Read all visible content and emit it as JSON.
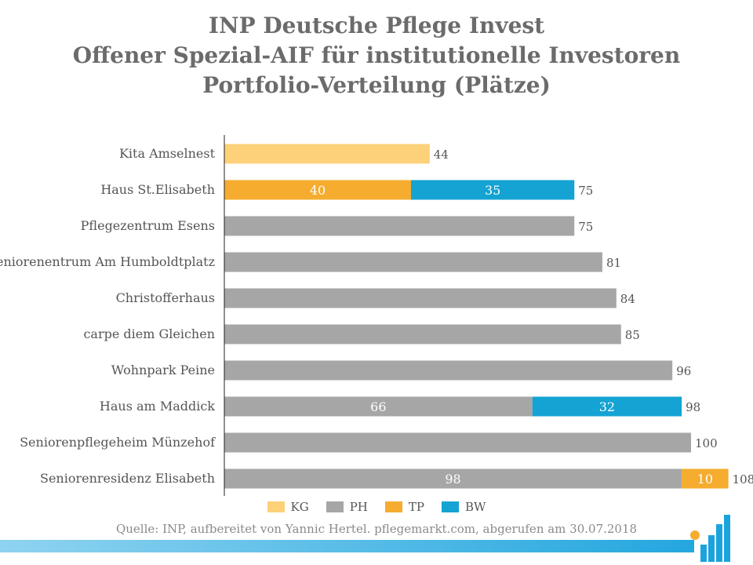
{
  "title_lines": [
    "INP Deutsche Pflege Invest",
    "Offener Spezial-AIF für institutionelle Investoren",
    "Portfolio-Verteilung (Plätze)"
  ],
  "source": "Quelle: INP, aufbereitet von Yannic Hertel. pflegemarkt.com, abgerufen am 30.07.2018",
  "colors": {
    "KG": "#fdd07a",
    "PH": "#a6a6a6",
    "TP": "#f5ac2f",
    "BW": "#14a3d3"
  },
  "logo": {
    "icon": "pflegemarkt-logo-icon",
    "colors": [
      "#1aa3dd",
      "#f5ac2f"
    ]
  },
  "chart_data": {
    "type": "bar",
    "orientation": "horizontal",
    "stacked": true,
    "xlim": [
      0,
      110
    ],
    "grid": false,
    "legend_position": "bottom",
    "series": [
      {
        "name": "KG",
        "values": [
          44,
          0,
          0,
          0,
          0,
          0,
          0,
          0,
          0,
          0
        ]
      },
      {
        "name": "PH",
        "values": [
          0,
          0,
          75,
          81,
          84,
          85,
          96,
          66,
          100,
          98
        ]
      },
      {
        "name": "TP",
        "values": [
          0,
          40,
          0,
          0,
          0,
          0,
          0,
          0,
          0,
          10
        ]
      },
      {
        "name": "BW",
        "values": [
          0,
          35,
          0,
          0,
          0,
          0,
          0,
          32,
          0,
          0
        ]
      }
    ],
    "categories": [
      "Kita Amselnest",
      "Haus St.Elisabeth",
      "Pflegezentrum Esens",
      "Seniorenentrum Am Humboldtplatz",
      "Christofferhaus",
      "carpe diem Gleichen",
      "Wohnpark Peine",
      "Haus am Maddick",
      "Seniorenpflegeheim Münzehof",
      "Seniorenresidenz Elisabeth"
    ],
    "totals": [
      44,
      75,
      75,
      81,
      84,
      85,
      96,
      98,
      100,
      108
    ],
    "segment_labels_shown_for": "stacked rows with more than one segment"
  }
}
